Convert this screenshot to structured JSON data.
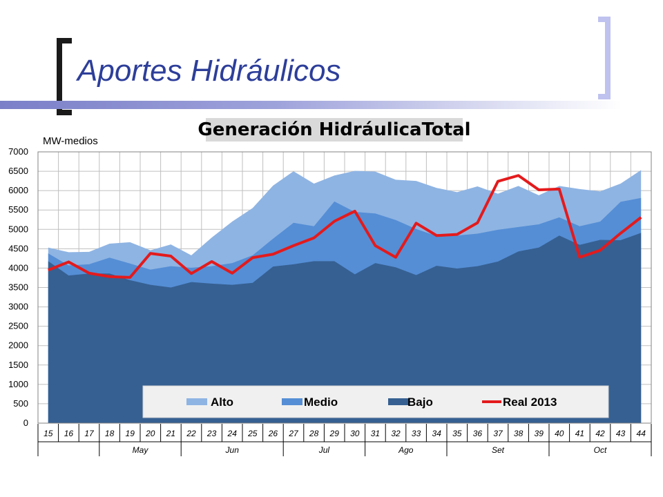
{
  "slide": {
    "title": "Aportes Hidráulicos"
  },
  "chart_data": {
    "type": "area",
    "title": "Generación HidráulicaTotal",
    "ylabel": "MW-medios",
    "ylim": [
      0,
      7000
    ],
    "yticks": [
      0,
      500,
      1000,
      1500,
      2000,
      2500,
      3000,
      3500,
      4000,
      4500,
      5000,
      5500,
      6000,
      6500,
      7000
    ],
    "grid": true,
    "legend_position": "bottom",
    "x": [
      "15",
      "16",
      "17",
      "18",
      "19",
      "20",
      "21",
      "22",
      "23",
      "24",
      "25",
      "26",
      "27",
      "28",
      "29",
      "30",
      "31",
      "32",
      "33",
      "34",
      "35",
      "36",
      "37",
      "38",
      "39",
      "40",
      "41",
      "42",
      "43",
      "44"
    ],
    "months": [
      {
        "name": "",
        "start": 0,
        "end": 2
      },
      {
        "name": "May",
        "start": 3,
        "end": 6
      },
      {
        "name": "Jun",
        "start": 7,
        "end": 11
      },
      {
        "name": "Jul",
        "start": 12,
        "end": 15
      },
      {
        "name": "Ago",
        "start": 16,
        "end": 19
      },
      {
        "name": "Set",
        "start": 20,
        "end": 24
      },
      {
        "name": "Oct",
        "start": 25,
        "end": 29
      }
    ],
    "series": [
      {
        "name": "Alto",
        "kind": "area",
        "color": "#8eb4e3",
        "values": [
          4530,
          4410,
          4420,
          4630,
          4670,
          4460,
          4610,
          4330,
          4790,
          5200,
          5550,
          6130,
          6500,
          6180,
          6390,
          6510,
          6490,
          6280,
          6250,
          6070,
          5960,
          6110,
          5920,
          6120,
          5880,
          6120,
          6040,
          5980,
          6180,
          6530
        ]
      },
      {
        "name": "Medio",
        "kind": "area",
        "color": "#558ed5",
        "values": [
          4380,
          4070,
          4100,
          4270,
          4120,
          3960,
          4050,
          4010,
          4050,
          4130,
          4330,
          4760,
          5170,
          5080,
          5720,
          5450,
          5410,
          5240,
          5010,
          4830,
          4840,
          4890,
          4990,
          5060,
          5130,
          5310,
          5080,
          5200,
          5710,
          5810
        ]
      },
      {
        "name": "Bajo",
        "kind": "area",
        "color": "#366092",
        "values": [
          4180,
          3810,
          3860,
          3860,
          3690,
          3570,
          3500,
          3640,
          3600,
          3570,
          3620,
          4040,
          4100,
          4180,
          4180,
          3840,
          4130,
          4020,
          3820,
          4060,
          3990,
          4050,
          4170,
          4430,
          4530,
          4840,
          4600,
          4730,
          4720,
          4910
        ]
      },
      {
        "name": "Real 2013",
        "kind": "line",
        "color": "#e41a1c",
        "values": [
          3950,
          4160,
          3870,
          3780,
          3760,
          4380,
          4310,
          3860,
          4170,
          3870,
          4270,
          4360,
          4580,
          4780,
          5210,
          5470,
          4580,
          4280,
          5160,
          4840,
          4870,
          5170,
          6240,
          6390,
          6020,
          6040,
          4280,
          4460,
          4900,
          5310
        ]
      }
    ]
  }
}
